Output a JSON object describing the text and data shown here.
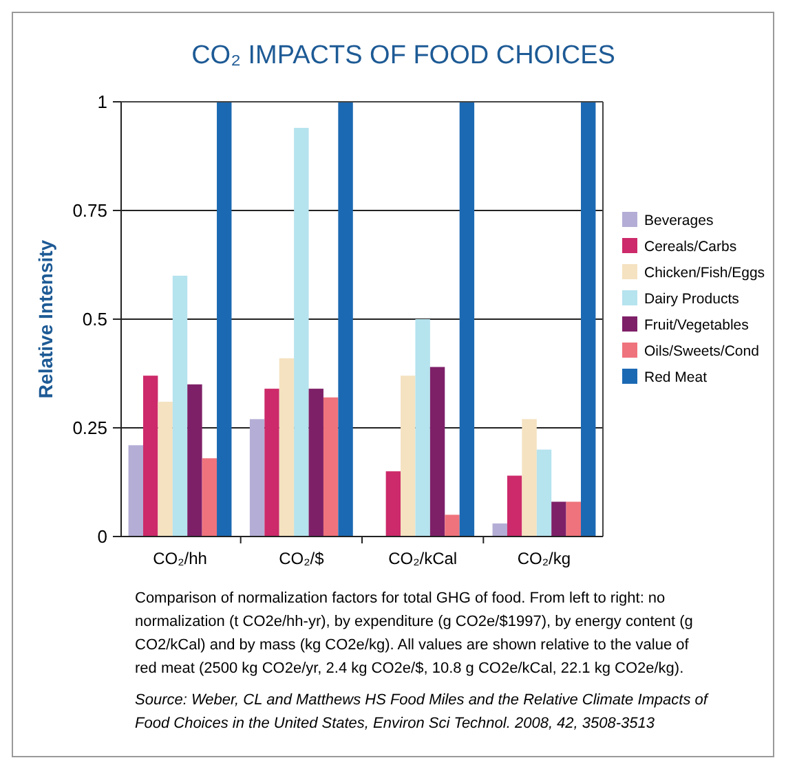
{
  "chart_data": {
    "type": "bar",
    "title": "CO₂ IMPACTS OF FOOD CHOICES",
    "ylabel": "Relative Intensity",
    "categories": [
      "CO₂/hh",
      "CO₂/$",
      "CO₂/kCal",
      "CO₂/kg"
    ],
    "series": [
      {
        "name": "Beverages",
        "color": "#b4aed6",
        "values": [
          0.21,
          0.27,
          0,
          0.03
        ]
      },
      {
        "name": "Cereals/Carbs",
        "color": "#cc2a6a",
        "values": [
          0.37,
          0.34,
          0.15,
          0.14
        ]
      },
      {
        "name": "Chicken/Fish/Eggs",
        "color": "#f5e2c0",
        "values": [
          0.31,
          0.41,
          0.37,
          0.27
        ]
      },
      {
        "name": "Dairy Products",
        "color": "#b5e3ee",
        "values": [
          0.6,
          0.94,
          0.5,
          0.2
        ]
      },
      {
        "name": "Fruit/Vegetables",
        "color": "#7e2068",
        "values": [
          0.35,
          0.34,
          0.39,
          0.08
        ]
      },
      {
        "name": "Oils/Sweets/Cond",
        "color": "#ef737c",
        "values": [
          0.18,
          0.32,
          0.05,
          0.08
        ]
      },
      {
        "name": "Red Meat",
        "color": "#1b69b3",
        "values": [
          1,
          1,
          1,
          1
        ]
      }
    ],
    "ylim": [
      0,
      1
    ],
    "yticks": [
      0,
      0.25,
      0.5,
      0.75,
      1
    ],
    "grid": "y",
    "legend": "right",
    "annotations": [
      "Comparison of normalization factors for total GHG of food. From left to right: no normalization (t CO2e/hh-yr), by expenditure (g CO2e/$1997), by energy content (g CO2/kCal) and by mass (kg CO2e/kg). All values are shown relative to the value of red meat (2500 kg CO2e/yr, 2.4 kg CO2e/$, 10.8 g CO2e/kCal, 22.1 kg CO2e/kg).",
      "Source: Weber, CL and Matthews HS Food Miles and the Relative Climate Impacts of Food Choices in the United States, Environ Sci Technol. 2008, 42, 3508-3513"
    ]
  }
}
